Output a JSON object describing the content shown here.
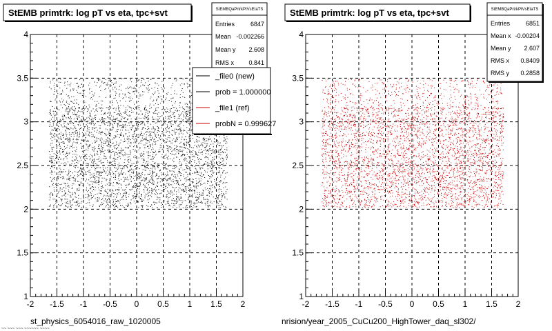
{
  "chart_data": [
    {
      "type": "scatter",
      "title": "StEMB primtrk: log pT vs eta, tpc+svt",
      "xlabel": "st_physics_6054016_raw_1020005",
      "xlim": [
        -2,
        2
      ],
      "ylim": [
        1,
        4
      ],
      "x_ticks": [
        "-2",
        "-1.5",
        "-1",
        "-0.5",
        "0",
        "0.5",
        "1",
        "1.5",
        "2"
      ],
      "y_ticks": [
        "1",
        "1.5",
        "2",
        "2.5",
        "3",
        "3.5",
        "4"
      ],
      "grid": true,
      "marker_color": "#000000",
      "point_extent": {
        "x": [
          -1.65,
          1.7
        ],
        "y": [
          1.98,
          3.5
        ]
      },
      "stats": {
        "name": "StEMBQaPrtrkPtVsEtaTS",
        "rows": [
          {
            "label": "Entries",
            "value": "6847"
          },
          {
            "label": "Mean",
            "value": "-0.002266"
          },
          {
            "label": "Mean y",
            "value": "2.608"
          },
          {
            "label": "RMS x",
            "value": "0.841"
          }
        ]
      },
      "legend": [
        {
          "label": "_file0 (new)",
          "color": "#000000"
        },
        {
          "label": "prob = 1.000000",
          "color": "#000000"
        },
        {
          "label": "_file1 (ref)",
          "color": "#cc0000"
        },
        {
          "label": "probN = 0.999627",
          "color": "#cc0000"
        }
      ]
    },
    {
      "type": "scatter",
      "title": "StEMB primtrk: log pT vs eta, tpc+svt",
      "xlabel": "nrision/year_2005_CuCu200_HighTower_daq_sl302/",
      "xlim": [
        -2,
        2
      ],
      "ylim": [
        1,
        4
      ],
      "x_ticks": [
        "-2",
        "-1.5",
        "-1",
        "-0.5",
        "0",
        "0.5",
        "1",
        "1.5",
        "2"
      ],
      "y_ticks": [
        "1",
        "1.5",
        "2",
        "2.5",
        "3",
        "3.5",
        "4"
      ],
      "grid": true,
      "marker_color": "#cc0000",
      "point_extent": {
        "x": [
          -1.7,
          1.72
        ],
        "y": [
          1.98,
          3.5
        ]
      },
      "stats": {
        "name": "StEMBQaPrtrkPtVsEtaTS",
        "rows": [
          {
            "label": "Entries",
            "value": "6851"
          },
          {
            "label": "Mean x",
            "value": "-0.00204"
          },
          {
            "label": "Mean y",
            "value": "2.607"
          },
          {
            "label": "RMS x",
            "value": "0.8409"
          },
          {
            "label": "RMS y",
            "value": "0.2858"
          }
        ]
      }
    }
  ],
  "footer_text": "~~ ~~~ ~~~ ~~~~~~ ~~~~"
}
